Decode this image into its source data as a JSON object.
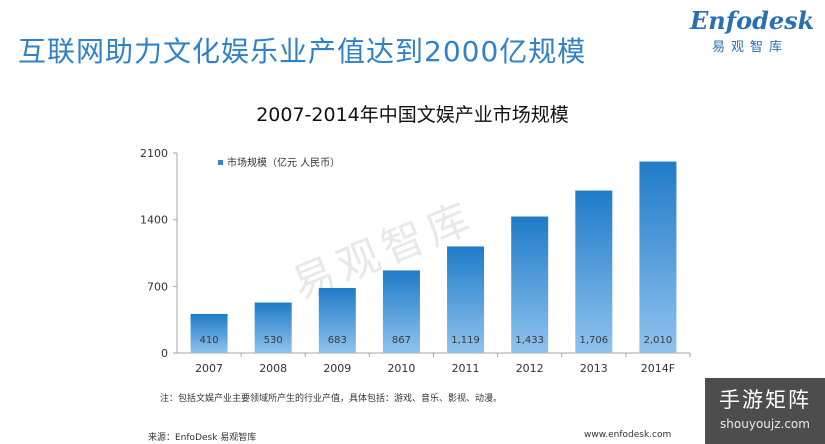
{
  "header": {
    "title": "互联网助力文化娱乐业产值达到2000亿规模",
    "logo_word": "Enfodesk",
    "logo_sub": "易观智库"
  },
  "watermark": "易观智库",
  "chart_data": {
    "type": "bar",
    "title": "2007-2014年中国文娱产业市场规模",
    "categories": [
      "2007",
      "2008",
      "2009",
      "2010",
      "2011",
      "2012",
      "2013",
      "2014F"
    ],
    "series": [
      {
        "name": "市场规模（亿元 人民币）",
        "values": [
          410,
          530,
          683,
          867,
          1119,
          1433,
          1706,
          2010
        ],
        "labels": [
          "410",
          "530",
          "683",
          "867",
          "1,119",
          "1,433",
          "1,706",
          "2,010"
        ]
      }
    ],
    "yticks": [
      "0",
      "700",
      "1400",
      "2100"
    ],
    "ylim": [
      0,
      2100
    ],
    "grid": false,
    "legend_position": "top-left",
    "bar_color": "#2f86cc"
  },
  "footer": {
    "note": "注：包括文娱产业主要领域所产生的行业产值，具体包括：游戏、音乐、影视、动漫。",
    "source": "来源：EnfoDesk 易观智库",
    "site": "www.enfodesk.com"
  },
  "badge": {
    "main": "手游矩阵",
    "sub": "shouyoujz.com"
  }
}
